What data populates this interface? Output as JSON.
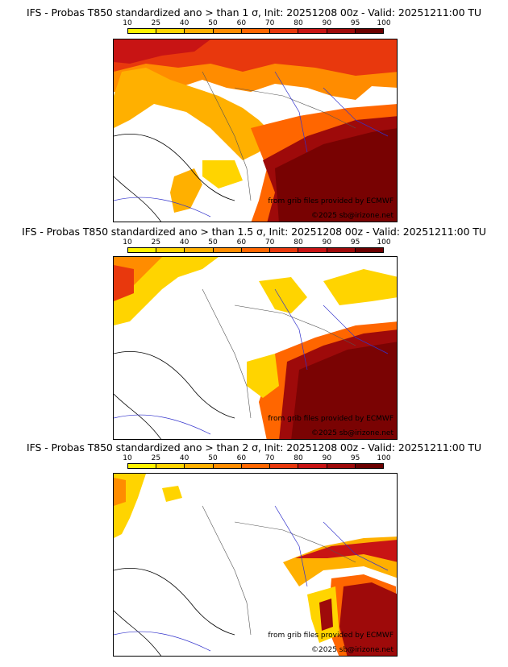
{
  "panels": [
    {
      "title": "IFS - Probas T850  standardized ano > than 1 σ, Init: 20251208 00z - Valid: 20251211:00 TU",
      "credit_source": "from grib files provided by ECMWF",
      "credit_copyright": "©2025 sb@irizone.net"
    },
    {
      "title": "IFS - Probas T850  standardized ano > than 1.5 σ, Init: 20251208 00z - Valid: 20251211:00 TU",
      "credit_source": "from grib files provided by ECMWF",
      "credit_copyright": "©2025 sb@irizone.net"
    },
    {
      "title": "IFS - Probas T850  standardized ano > than 2 σ, Init: 20251208 00z - Valid: 20251211:00 TU",
      "credit_source": "from grib files provided by ECMWF",
      "credit_copyright": "©2025 sb@irizone.net"
    }
  ],
  "colorbar": {
    "ticks": [
      "10",
      "25",
      "40",
      "50",
      "60",
      "70",
      "80",
      "90",
      "95",
      "100"
    ],
    "colors": [
      "#fff200",
      "#ffd400",
      "#ffb000",
      "#ff8c00",
      "#ff6600",
      "#e8380d",
      "#c81414",
      "#9e0a0a",
      "#6b0000"
    ]
  }
}
